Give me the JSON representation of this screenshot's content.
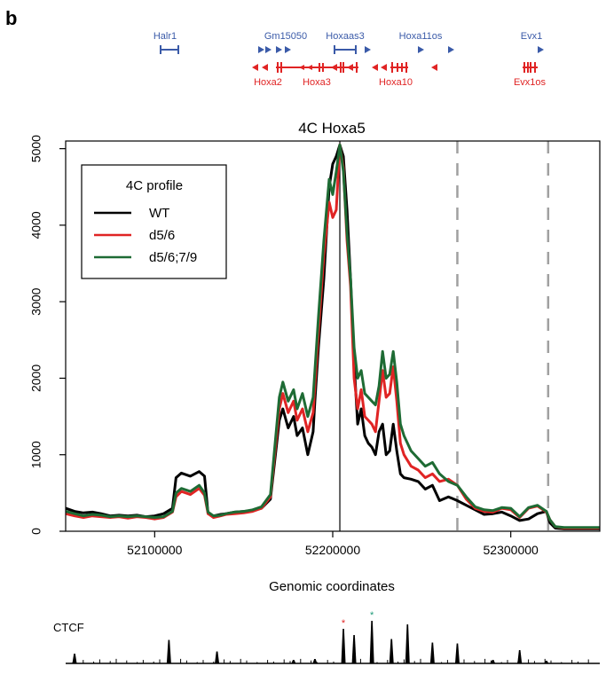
{
  "panel_label": "b",
  "gene_track": {
    "blue_color": "#3a5aa8",
    "red_color": "#e02424",
    "blue_labels": [
      "Halr1",
      "Gm15050",
      "Hoxaas3",
      "Hoxa11os",
      "Evx1"
    ],
    "red_labels": [
      "Hoxa2",
      "Hoxa3",
      "Hoxa10",
      "Evx1os"
    ]
  },
  "chart_data": {
    "type": "line",
    "title": "4C Hoxa5",
    "xlabel": "Genomic coordinates",
    "ylabel": "",
    "xlim": [
      52050000,
      52350000
    ],
    "ylim": [
      0,
      5100
    ],
    "xticks": [
      52100000,
      52200000,
      52300000
    ],
    "xtick_labels": [
      "52100000",
      "52200000",
      "52300000"
    ],
    "yticks": [
      0,
      1000,
      2000,
      3000,
      4000,
      5000
    ],
    "ytick_labels": [
      "0",
      "1000",
      "2000",
      "3000",
      "4000",
      "5000"
    ],
    "grid": false,
    "legend": {
      "title": "4C profile",
      "placement": "top-left"
    },
    "viewpoint_x": 52204000,
    "dashed_lines_x": [
      52270000,
      52321000
    ],
    "series": [
      {
        "name": "WT",
        "color": "#000000",
        "x": [
          52050000,
          52055000,
          52060000,
          52065000,
          52070000,
          52075000,
          52080000,
          52085000,
          52090000,
          52095000,
          52100000,
          52105000,
          52110000,
          52112000,
          52115000,
          52120000,
          52125000,
          52128000,
          52130000,
          52133000,
          52137000,
          52140000,
          52145000,
          52150000,
          52155000,
          52160000,
          52165000,
          52170000,
          52172000,
          52175000,
          52178000,
          52180000,
          52183000,
          52186000,
          52189000,
          52190000,
          52192000,
          52195000,
          52198000,
          52200000,
          52202000,
          52204000,
          52206000,
          52208000,
          52210000,
          52212000,
          52214000,
          52216000,
          52218000,
          52220000,
          52222000,
          52224000,
          52226000,
          52228000,
          52230000,
          52232000,
          52234000,
          52236000,
          52238000,
          52240000,
          52244000,
          52248000,
          52252000,
          52256000,
          52260000,
          52265000,
          52270000,
          52275000,
          52280000,
          52285000,
          52290000,
          52295000,
          52300000,
          52305000,
          52310000,
          52315000,
          52320000,
          52322000,
          52325000,
          52330000,
          52340000,
          52350000
        ],
        "y": [
          300,
          260,
          240,
          250,
          230,
          200,
          210,
          200,
          210,
          190,
          200,
          230,
          300,
          700,
          760,
          720,
          780,
          720,
          230,
          200,
          220,
          230,
          250,
          260,
          270,
          300,
          420,
          1450,
          1600,
          1350,
          1500,
          1250,
          1350,
          1000,
          1300,
          1700,
          2400,
          3300,
          4500,
          4800,
          4900,
          5050,
          4900,
          4200,
          3300,
          2200,
          1400,
          1600,
          1250,
          1150,
          1100,
          1000,
          1300,
          1400,
          1000,
          1050,
          1400,
          1050,
          750,
          700,
          680,
          650,
          550,
          600,
          400,
          450,
          400,
          340,
          280,
          220,
          230,
          250,
          200,
          140,
          160,
          230,
          260,
          110,
          40,
          30,
          30,
          30
        ]
      },
      {
        "name": "d5/6",
        "color": "#e02424",
        "x": [
          52050000,
          52055000,
          52060000,
          52065000,
          52070000,
          52075000,
          52080000,
          52085000,
          52090000,
          52095000,
          52100000,
          52105000,
          52110000,
          52112000,
          52115000,
          52120000,
          52125000,
          52128000,
          52130000,
          52133000,
          52137000,
          52140000,
          52145000,
          52150000,
          52155000,
          52160000,
          52165000,
          52170000,
          52172000,
          52175000,
          52178000,
          52180000,
          52183000,
          52186000,
          52189000,
          52190000,
          52192000,
          52195000,
          52198000,
          52200000,
          52202000,
          52204000,
          52206000,
          52208000,
          52210000,
          52212000,
          52214000,
          52216000,
          52218000,
          52220000,
          52222000,
          52224000,
          52226000,
          52228000,
          52230000,
          52232000,
          52234000,
          52236000,
          52238000,
          52240000,
          52244000,
          52248000,
          52252000,
          52256000,
          52260000,
          52265000,
          52270000,
          52275000,
          52280000,
          52285000,
          52290000,
          52295000,
          52300000,
          52305000,
          52310000,
          52315000,
          52320000,
          52322000,
          52325000,
          52330000,
          52340000,
          52350000
        ],
        "y": [
          230,
          200,
          180,
          200,
          190,
          180,
          190,
          170,
          190,
          180,
          160,
          180,
          250,
          450,
          520,
          480,
          560,
          470,
          230,
          180,
          200,
          220,
          230,
          240,
          260,
          300,
          450,
          1600,
          1800,
          1550,
          1700,
          1450,
          1600,
          1300,
          1550,
          1900,
          2600,
          3600,
          4300,
          4100,
          4200,
          5050,
          4750,
          3800,
          3200,
          2000,
          1600,
          1850,
          1500,
          1450,
          1400,
          1300,
          1700,
          2100,
          1750,
          1800,
          2150,
          1700,
          1150,
          1000,
          850,
          800,
          700,
          750,
          650,
          680,
          600,
          420,
          300,
          260,
          250,
          300,
          280,
          180,
          300,
          330,
          250,
          150,
          60,
          40,
          40,
          40
        ]
      },
      {
        "name": "d5/6;7/9",
        "color": "#1e6b34",
        "x": [
          52050000,
          52055000,
          52060000,
          52065000,
          52070000,
          52075000,
          52080000,
          52085000,
          52090000,
          52095000,
          52100000,
          52105000,
          52110000,
          52112000,
          52115000,
          52120000,
          52125000,
          52128000,
          52130000,
          52133000,
          52137000,
          52140000,
          52145000,
          52150000,
          52155000,
          52160000,
          52165000,
          52170000,
          52172000,
          52175000,
          52178000,
          52180000,
          52183000,
          52186000,
          52189000,
          52190000,
          52192000,
          52195000,
          52198000,
          52200000,
          52202000,
          52204000,
          52206000,
          52208000,
          52210000,
          52212000,
          52214000,
          52216000,
          52218000,
          52220000,
          52222000,
          52224000,
          52226000,
          52228000,
          52230000,
          52232000,
          52234000,
          52236000,
          52238000,
          52240000,
          52244000,
          52248000,
          52252000,
          52256000,
          52260000,
          52265000,
          52270000,
          52275000,
          52280000,
          52285000,
          52290000,
          52295000,
          52300000,
          52305000,
          52310000,
          52315000,
          52320000,
          52322000,
          52325000,
          52330000,
          52340000,
          52350000
        ],
        "y": [
          260,
          230,
          200,
          220,
          210,
          190,
          200,
          190,
          200,
          190,
          180,
          190,
          260,
          500,
          560,
          520,
          600,
          500,
          250,
          200,
          210,
          230,
          250,
          260,
          280,
          320,
          480,
          1750,
          1950,
          1700,
          1850,
          1600,
          1800,
          1500,
          1750,
          2100,
          2800,
          3800,
          4600,
          4400,
          4700,
          5050,
          4700,
          3900,
          3300,
          2400,
          2000,
          2100,
          1800,
          1750,
          1700,
          1650,
          1900,
          2350,
          2000,
          2050,
          2350,
          1950,
          1400,
          1250,
          1050,
          950,
          850,
          900,
          750,
          650,
          600,
          450,
          320,
          280,
          270,
          310,
          300,
          190,
          310,
          340,
          260,
          150,
          60,
          50,
          50,
          50
        ]
      }
    ]
  },
  "ctcf_track": {
    "label": "CTCF",
    "red_star_color": "#e02424",
    "green_star_color": "#1e9a78",
    "peaks": [
      {
        "x": 52055000,
        "h": 0.22
      },
      {
        "x": 52108000,
        "h": 0.53
      },
      {
        "x": 52135000,
        "h": 0.27
      },
      {
        "x": 52178000,
        "h": 0.08
      },
      {
        "x": 52190000,
        "h": 0.1
      },
      {
        "x": 52206000,
        "h": 0.78,
        "star": "red"
      },
      {
        "x": 52212000,
        "h": 0.64
      },
      {
        "x": 52222000,
        "h": 0.96,
        "star": "green"
      },
      {
        "x": 52233000,
        "h": 0.55
      },
      {
        "x": 52242000,
        "h": 0.88
      },
      {
        "x": 52256000,
        "h": 0.47
      },
      {
        "x": 52270000,
        "h": 0.45
      },
      {
        "x": 52290000,
        "h": 0.08
      },
      {
        "x": 52305000,
        "h": 0.3
      },
      {
        "x": 52320000,
        "h": 0.06
      }
    ]
  }
}
